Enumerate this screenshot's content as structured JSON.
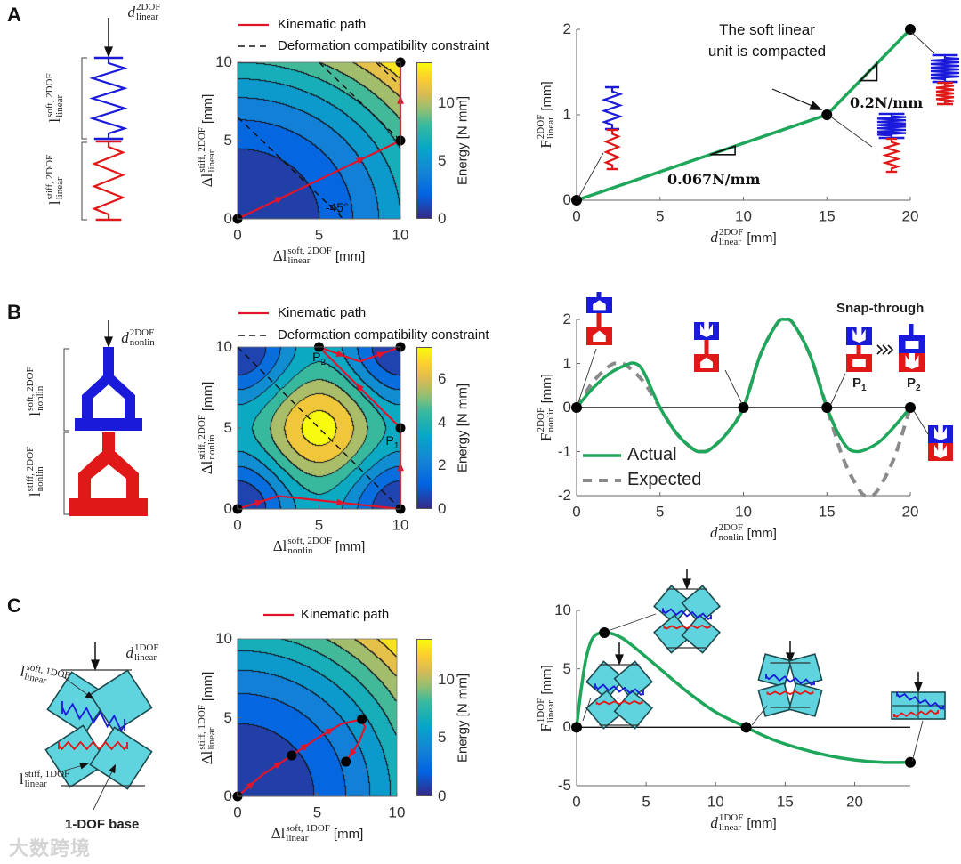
{
  "figure": {
    "panels": [
      "A",
      "B",
      "C"
    ],
    "watermark": "大数跨境"
  },
  "schematics": {
    "A": {
      "force": {
        "sym": "d",
        "sup": "2DOF",
        "sub": "linear"
      },
      "soft": {
        "sym": "l",
        "sup": "soft, 2DOF",
        "sub": "linear"
      },
      "stiff": {
        "sym": "l",
        "sup": "stiff, 2DOF",
        "sub": "linear"
      }
    },
    "B": {
      "force": {
        "sym": "d",
        "sup": "2DOF",
        "sub": "nonlin"
      },
      "soft": {
        "sym": "l",
        "sup": "soft, 2DOF",
        "sub": "nonlin"
      },
      "stiff": {
        "sym": "l",
        "sup": "stiff, 2DOF",
        "sub": "nonlin"
      }
    },
    "C": {
      "force": {
        "sym": "d",
        "sup": "1DOF",
        "sub": "linear"
      },
      "soft": {
        "sym": "l",
        "sup": "soft, 1DOF",
        "sub": "linear"
      },
      "stiff": {
        "sym": "l",
        "sup": "stiff, 1DOF",
        "sub": "linear"
      },
      "base_label": "1-DOF base"
    }
  },
  "colors": {
    "soft": "#1a1adb",
    "stiff": "#e01818",
    "actual": "#1ea65a",
    "expected": "#8a8a8a",
    "path": "#e0142a",
    "cell": "#5fd3de"
  },
  "chart_data": [
    {
      "type": "heatmap",
      "panel": "A",
      "legend": [
        "Kinematic path",
        "Deformation compatibility constraint"
      ],
      "legend_placement": "top",
      "xlabel": {
        "sym": "Δl",
        "sup": "soft, 2DOF",
        "sub": "linear",
        "unit": "[mm]"
      },
      "ylabel": {
        "sym": "Δl",
        "sup": "stiff, 2DOF",
        "sub": "linear",
        "unit": "[mm]"
      },
      "xlim": [
        0,
        10
      ],
      "ylim": [
        0,
        10
      ],
      "xticks": [
        0,
        5,
        10
      ],
      "yticks": [
        0,
        5,
        10
      ],
      "energy": {
        "model": "quadratic",
        "a": 0.06,
        "b": 0.075,
        "level_step": 1.5
      },
      "colorbar": {
        "label": "Energy [N mm]",
        "clim": [
          0,
          13.5
        ],
        "ticks": [
          0,
          5,
          10
        ]
      },
      "path": [
        [
          0,
          0
        ],
        [
          5,
          2.5
        ],
        [
          10,
          5
        ],
        [
          10,
          10
        ]
      ],
      "points": [
        [
          0,
          0
        ],
        [
          10,
          5
        ],
        [
          10,
          10
        ]
      ],
      "constraint_lines": [
        6.5,
        15,
        18.5
      ],
      "annotations": [
        {
          "text": "-45°",
          "x": 5.4,
          "y": 0.6
        }
      ]
    },
    {
      "type": "heatmap",
      "panel": "B",
      "legend": [
        "Kinematic path",
        "Deformation compatibility constraint"
      ],
      "legend_placement": "top",
      "xlabel": {
        "sym": "Δl",
        "sup": "soft, 2DOF",
        "sub": "nonlin",
        "unit": "[mm]"
      },
      "ylabel": {
        "sym": "Δl",
        "sup": "stiff, 2DOF",
        "sub": "nonlin",
        "unit": "[mm]"
      },
      "xlim": [
        0,
        10
      ],
      "ylim": [
        0,
        10
      ],
      "xticks": [
        0,
        5,
        10
      ],
      "yticks": [
        0,
        5,
        10
      ],
      "energy": {
        "model": "cosine",
        "c": 1.85,
        "level_step": 1
      },
      "colorbar": {
        "label": "Energy [N mm]",
        "clim": [
          0,
          7.5
        ],
        "ticks": [
          0,
          2,
          4,
          6
        ]
      },
      "path": [
        [
          0,
          0
        ],
        [
          2.5,
          0.8
        ],
        [
          10,
          0
        ],
        [
          10,
          5
        ],
        [
          5,
          10
        ],
        [
          7.5,
          9.1
        ],
        [
          10,
          10
        ]
      ],
      "points": [
        [
          0,
          0
        ],
        [
          10,
          0
        ],
        [
          10,
          5
        ],
        [
          5,
          10
        ],
        [
          10,
          10
        ]
      ],
      "constraint_lines": [
        10,
        15
      ],
      "annotations": [
        {
          "text": "P",
          "sub": "1",
          "x": 9.1,
          "y": 4.1
        },
        {
          "text": "P",
          "sub": "2",
          "x": 4.6,
          "y": 9.3
        }
      ]
    },
    {
      "type": "heatmap",
      "panel": "C",
      "legend": [
        "Kinematic path"
      ],
      "legend_placement": "top",
      "xlabel": {
        "sym": "Δl",
        "sup": "soft, 1DOF",
        "sub": "linear",
        "unit": "[mm]"
      },
      "ylabel": {
        "sym": "Δl",
        "sup": "stiff, 1DOF",
        "sub": "linear",
        "unit": "[mm]"
      },
      "xlim": [
        0,
        10
      ],
      "ylim": [
        0,
        10
      ],
      "xticks": [
        0,
        5,
        10
      ],
      "yticks": [
        0,
        5,
        10
      ],
      "energy": {
        "model": "quadratic",
        "a": 0.065,
        "b": 0.07,
        "level_step": 1.5
      },
      "colorbar": {
        "label": "Energy [N mm]",
        "clim": [
          0,
          13.5
        ],
        "ticks": [
          0,
          5,
          10
        ]
      },
      "path": [
        [
          0,
          0
        ],
        [
          1.6,
          1.4
        ],
        [
          3.4,
          2.6
        ],
        [
          5,
          3.7
        ],
        [
          6.5,
          4.6
        ],
        [
          7.8,
          4.9
        ],
        [
          8,
          4.4
        ],
        [
          7.6,
          3.4
        ],
        [
          6.8,
          2.2
        ]
      ],
      "points": [
        [
          0,
          0
        ],
        [
          3.4,
          2.6
        ],
        [
          7.8,
          4.9
        ],
        [
          6.8,
          2.2
        ]
      ],
      "constraint_lines": [],
      "annotations": []
    },
    {
      "type": "line",
      "panel": "A",
      "xlabel": {
        "sym": "d",
        "sup": "2DOF",
        "sub": "linear",
        "unit": "[mm]"
      },
      "ylabel": {
        "sym": "F",
        "sup": "2DOF",
        "sub": "linear",
        "unit": "[mm]"
      },
      "xlim": [
        0,
        20
      ],
      "ylim": [
        0,
        2
      ],
      "xticks": [
        0,
        5,
        10,
        15,
        20
      ],
      "yticks": [
        0,
        1,
        2
      ],
      "series": [
        {
          "name": "Actual",
          "x": [
            0,
            15,
            20
          ],
          "y": [
            0,
            1,
            2
          ],
          "style": "solid",
          "smooth": false
        }
      ],
      "points": [
        [
          0,
          0
        ],
        [
          15,
          1
        ],
        [
          20,
          2
        ]
      ],
      "annotations": [
        {
          "text": "The soft linear",
          "text2": "unit is compacted"
        },
        {
          "text": "0.067N/mm",
          "slope": 0.067
        },
        {
          "text": "0.2N/mm",
          "slope": 0.2
        }
      ]
    },
    {
      "type": "line",
      "panel": "B",
      "xlabel": {
        "sym": "d",
        "sup": "2DOF",
        "sub": "nonlin",
        "unit": "[mm]"
      },
      "ylabel": {
        "sym": "F",
        "sup": "2DOF",
        "sub": "nonlin",
        "unit": "[mm]"
      },
      "xlim": [
        0,
        20
      ],
      "ylim": [
        -2,
        2
      ],
      "xticks": [
        0,
        5,
        10,
        15,
        20
      ],
      "yticks": [
        -2,
        -1,
        0,
        1,
        2
      ],
      "legend": [
        "Actual",
        "Expected"
      ],
      "legend_placement": "bottom-left",
      "series": [
        {
          "name": "Actual",
          "style": "solid",
          "smooth": true,
          "x": [
            0,
            1,
            2,
            3,
            3.5,
            4,
            5,
            6,
            7,
            7.5,
            8,
            9,
            10,
            11,
            12,
            12.5,
            13,
            14,
            15,
            16,
            16.8,
            18,
            19,
            20
          ],
          "y": [
            0,
            0.45,
            0.78,
            0.97,
            1.0,
            0.82,
            0,
            -0.59,
            -0.95,
            -1.0,
            -0.95,
            -0.59,
            0,
            1.18,
            1.9,
            2.0,
            1.9,
            1.18,
            0,
            -0.8,
            -1.0,
            -0.82,
            -0.45,
            0
          ]
        },
        {
          "name": "Expected",
          "style": "dashed",
          "smooth": true,
          "x": [
            0,
            1,
            2,
            2.5,
            3,
            4,
            5,
            6,
            7,
            7.5,
            8,
            9,
            10,
            11,
            12,
            12.5,
            13,
            14,
            15,
            16,
            17,
            17.5,
            18,
            19,
            20
          ],
          "y": [
            0,
            0.59,
            0.95,
            1.0,
            0.95,
            0.59,
            0,
            -0.59,
            -0.95,
            -1.0,
            -0.95,
            -0.59,
            0,
            1.18,
            1.9,
            2.0,
            1.9,
            1.18,
            0,
            -1.18,
            -1.9,
            -2.0,
            -1.9,
            -1.18,
            0
          ]
        }
      ],
      "zero_line": [
        0,
        20
      ],
      "points": [
        [
          0,
          0
        ],
        [
          10,
          0
        ],
        [
          15,
          0
        ],
        [
          20,
          0
        ]
      ],
      "annotations": [
        {
          "text": "Snap-through"
        },
        {
          "text": "P",
          "sub": "1"
        },
        {
          "text": "P",
          "sub": "2"
        }
      ]
    },
    {
      "type": "line",
      "panel": "C",
      "xlabel": {
        "sym": "d",
        "sup": "1DOF",
        "sub": "linear",
        "unit": "[mm]"
      },
      "ylabel": {
        "sym": "F",
        "sup": "1DOF",
        "sub": "linear",
        "unit": "[mm]"
      },
      "xlim": [
        0,
        24
      ],
      "ylim": [
        -5,
        10
      ],
      "xticks": [
        0,
        5,
        10,
        15,
        20
      ],
      "yticks": [
        -5,
        0,
        5,
        10
      ],
      "series": [
        {
          "name": "Actual",
          "style": "solid",
          "smooth": true,
          "x": [
            0,
            0.3,
            0.7,
            1.2,
            2,
            3,
            4,
            6,
            8,
            10,
            12.2,
            14,
            16,
            18,
            20,
            22,
            24
          ],
          "y": [
            0,
            3,
            6,
            7.7,
            8.1,
            7.8,
            7.0,
            5.0,
            3.0,
            1.3,
            0,
            -1.0,
            -1.8,
            -2.4,
            -2.8,
            -3.0,
            -3.0
          ]
        }
      ],
      "zero_line": [
        0,
        24
      ],
      "points": [
        [
          0,
          0
        ],
        [
          2,
          8.1
        ],
        [
          12.2,
          0
        ],
        [
          24,
          -3
        ]
      ]
    }
  ]
}
